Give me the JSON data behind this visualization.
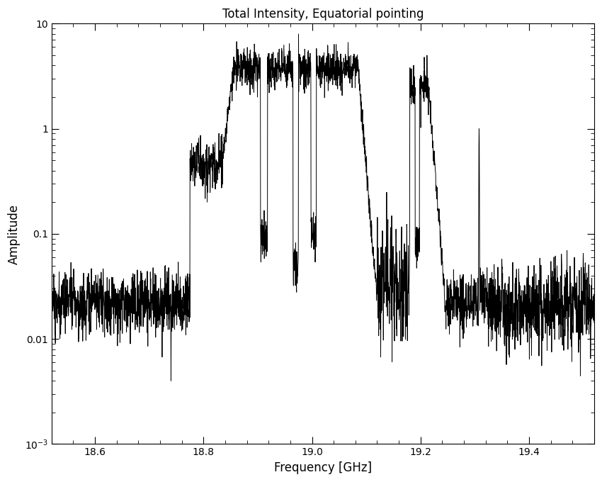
{
  "title": "Total Intensity, Equatorial pointing",
  "xlabel": "Frequency [GHz]",
  "ylabel": "Amplitude",
  "xlim": [
    18.52,
    19.52
  ],
  "ylim_log": [
    0.001,
    10
  ],
  "xticks": [
    18.6,
    18.8,
    19.0,
    19.2,
    19.4
  ],
  "yticks_log": [
    0.001,
    0.01,
    0.1,
    1,
    10
  ],
  "ytick_labels": [
    "10⁻³",
    "0.01",
    "0.1",
    "1",
    "10"
  ],
  "background_color": "#ffffff",
  "line_color": "#000000",
  "line_width": 0.7,
  "seed": 12345
}
